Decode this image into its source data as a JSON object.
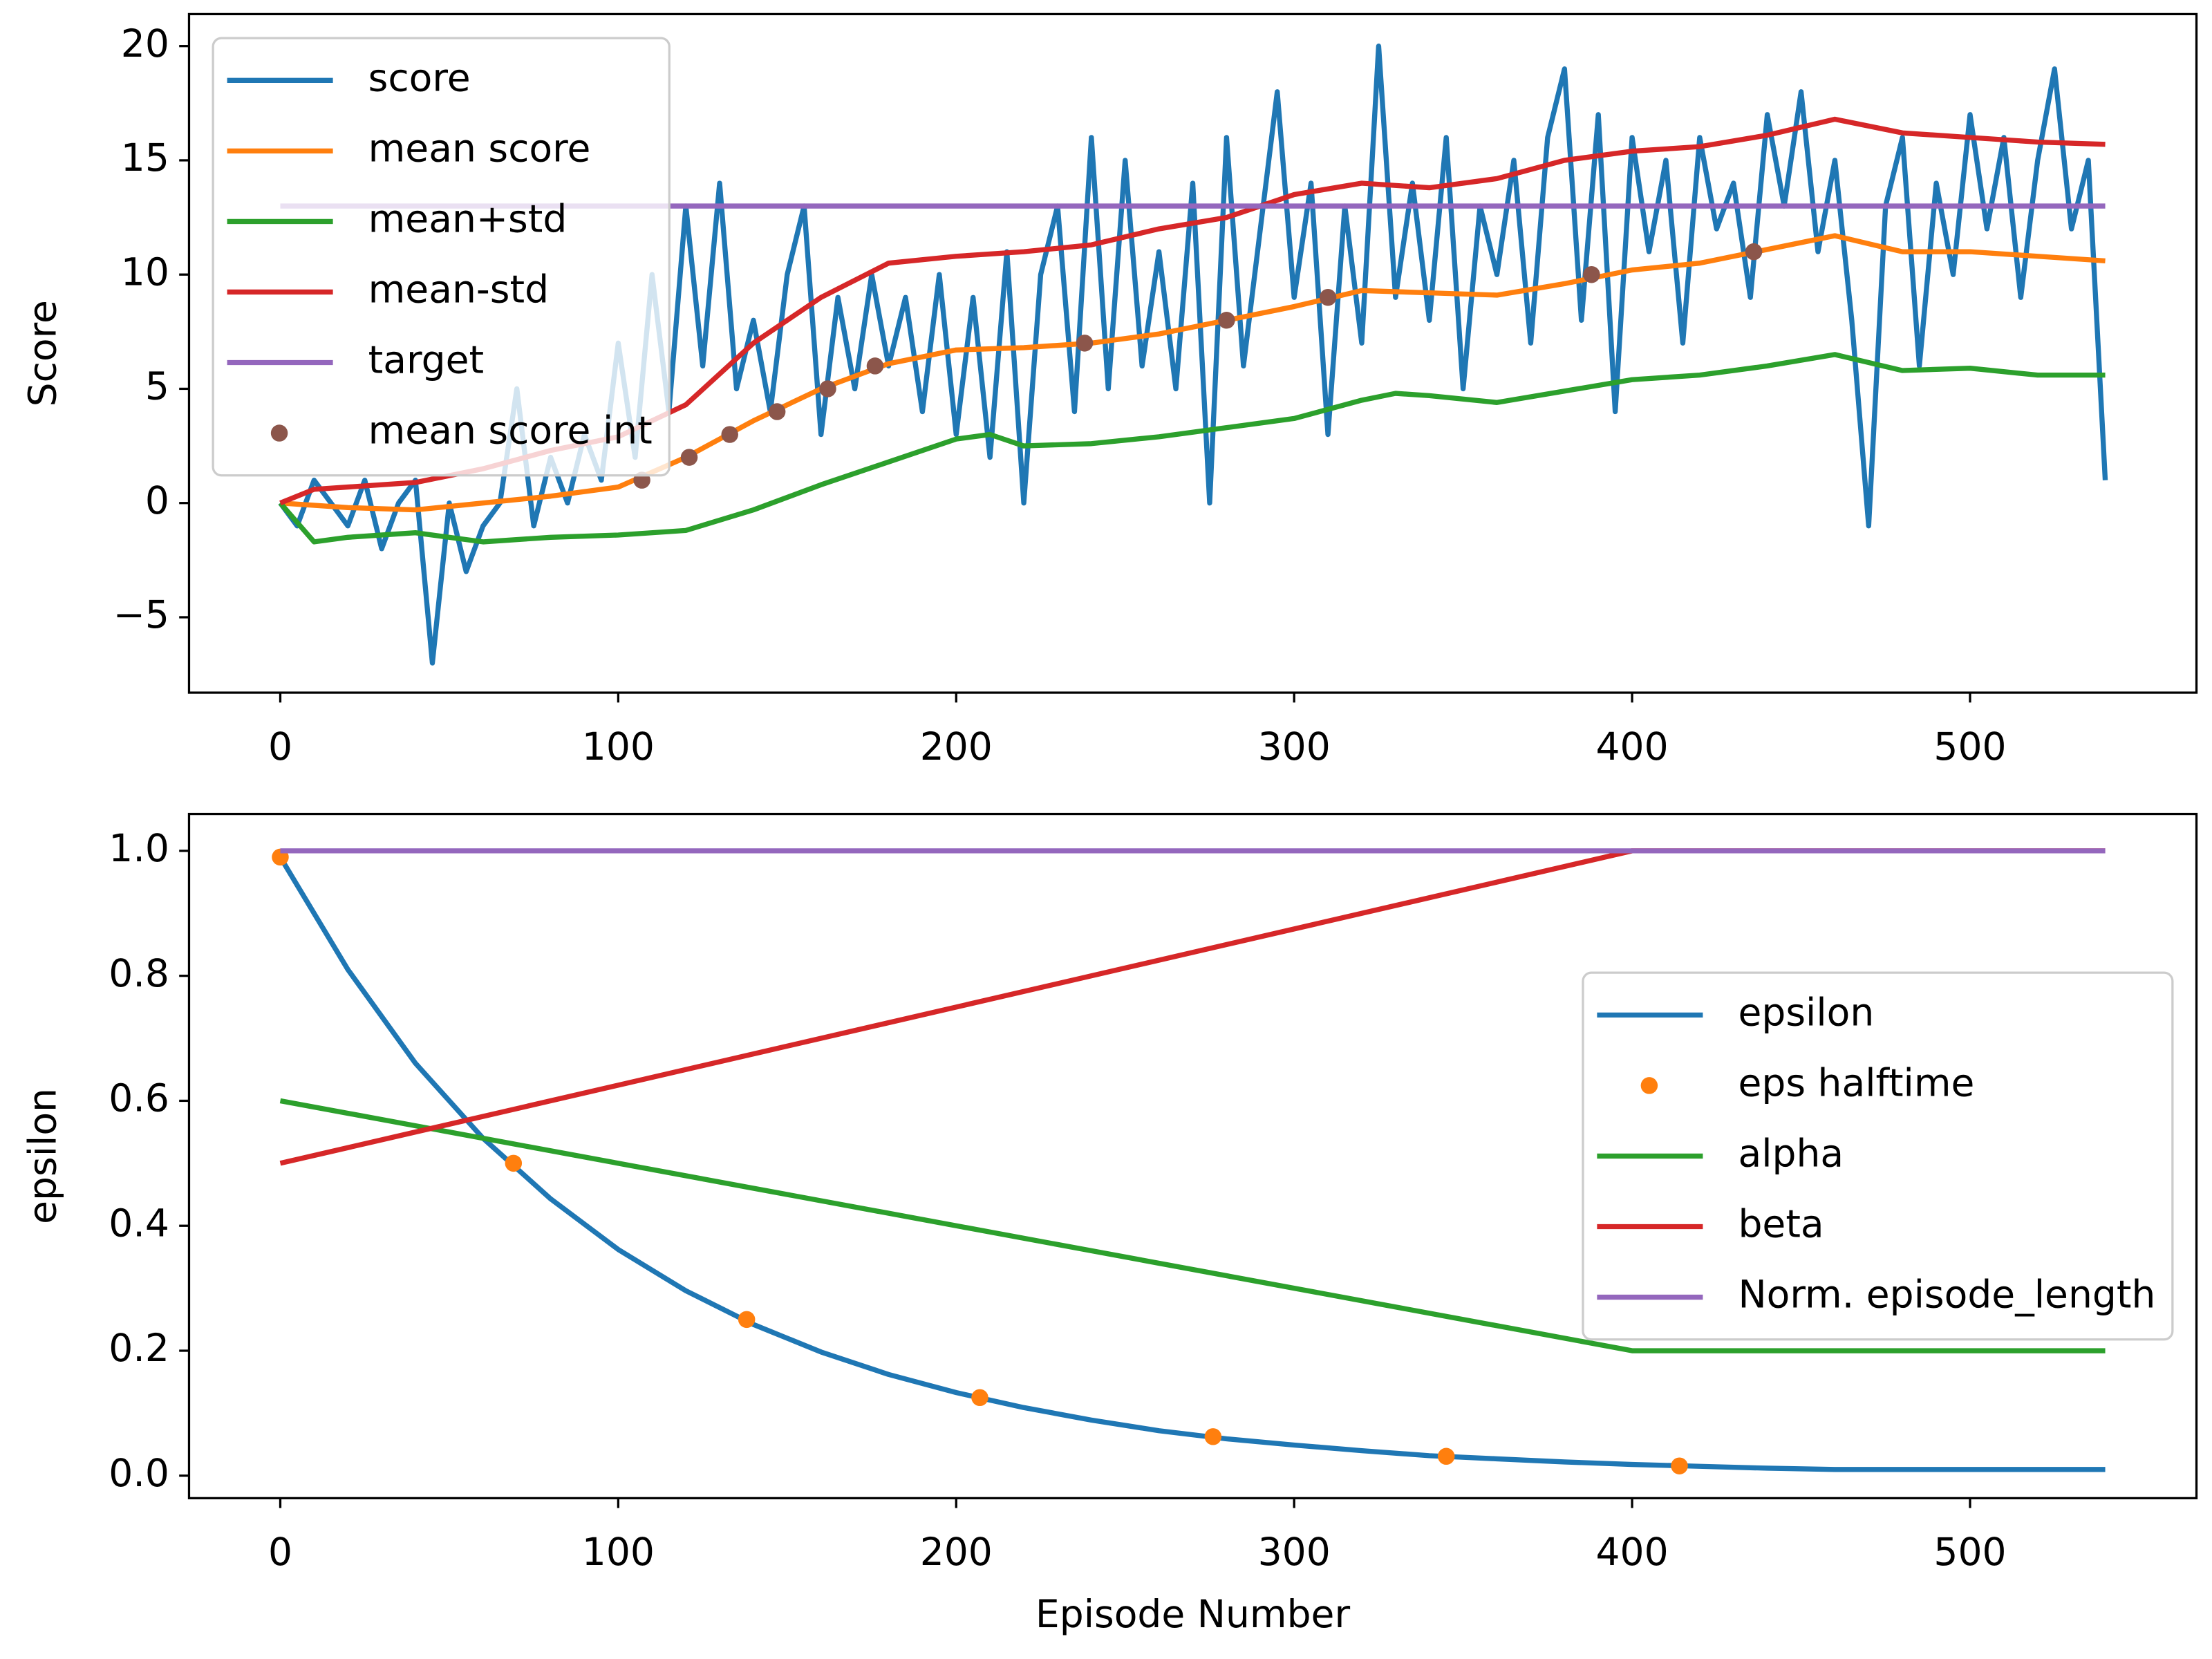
{
  "chart_data": [
    {
      "type": "line",
      "ylabel": "Score",
      "legend": "upper left",
      "xlim": [
        -27,
        567
      ],
      "ylim": [
        -8.3,
        21.4
      ],
      "xticks": [
        0,
        100,
        200,
        300,
        400,
        500
      ],
      "yticks": [
        {
          "value": -5,
          "label": "−5"
        },
        0,
        5,
        10,
        15,
        20
      ],
      "series": [
        {
          "name": "score",
          "color": "#1f77b4",
          "style": "line",
          "x": [
            0,
            5,
            10,
            15,
            20,
            25,
            30,
            35,
            40,
            45,
            50,
            55,
            60,
            65,
            70,
            75,
            80,
            85,
            90,
            95,
            100,
            105,
            110,
            115,
            120,
            125,
            130,
            135,
            140,
            145,
            150,
            155,
            160,
            165,
            170,
            175,
            180,
            185,
            190,
            195,
            200,
            205,
            210,
            215,
            220,
            225,
            230,
            235,
            240,
            245,
            250,
            255,
            260,
            265,
            270,
            275,
            280,
            285,
            290,
            295,
            300,
            305,
            310,
            315,
            320,
            325,
            330,
            335,
            340,
            345,
            350,
            355,
            360,
            365,
            370,
            375,
            380,
            385,
            390,
            395,
            400,
            405,
            410,
            415,
            420,
            425,
            430,
            435,
            440,
            445,
            450,
            455,
            460,
            465,
            470,
            475,
            480,
            485,
            490,
            495,
            500,
            505,
            510,
            515,
            520,
            525,
            530,
            535,
            540
          ],
          "values": [
            0,
            -1,
            1,
            0,
            -1,
            1,
            -2,
            0,
            1,
            -7,
            0,
            -3,
            -1,
            0,
            5,
            -1,
            2,
            0,
            3,
            1,
            7,
            2,
            10,
            4,
            13,
            6,
            14,
            5,
            8,
            4,
            10,
            13,
            3,
            9,
            5,
            10,
            6,
            9,
            4,
            10,
            3,
            9,
            2,
            11,
            0,
            10,
            13,
            4,
            16,
            5,
            15,
            6,
            11,
            5,
            14,
            0,
            16,
            6,
            12,
            18,
            9,
            14,
            3,
            13,
            7,
            20,
            9,
            14,
            8,
            16,
            5,
            13,
            10,
            15,
            7,
            16,
            19,
            8,
            17,
            4,
            16,
            11,
            15,
            7,
            16,
            12,
            14,
            9,
            17,
            13,
            18,
            11,
            15,
            8,
            -1,
            13,
            16,
            6,
            14,
            10,
            17,
            12,
            16,
            9,
            15,
            19,
            12,
            15,
            1
          ]
        },
        {
          "name": "mean score",
          "color": "#ff7f0e",
          "style": "line",
          "x": [
            0,
            20,
            40,
            60,
            80,
            100,
            120,
            140,
            160,
            180,
            200,
            220,
            240,
            260,
            280,
            300,
            320,
            340,
            360,
            380,
            400,
            420,
            440,
            460,
            480,
            500,
            520,
            540
          ],
          "values": [
            0,
            -0.2,
            -0.3,
            0,
            0.3,
            0.7,
            2,
            3.6,
            5,
            6.1,
            6.7,
            6.8,
            7,
            7.4,
            8,
            8.6,
            9.3,
            9.2,
            9.1,
            9.6,
            10.2,
            10.5,
            11.1,
            11.7,
            11,
            11,
            10.8,
            10.6
          ]
        },
        {
          "name": "mean+std",
          "color": "#2ca02c",
          "style": "line",
          "x": [
            0,
            10,
            20,
            40,
            60,
            80,
            100,
            120,
            140,
            160,
            180,
            200,
            210,
            220,
            240,
            260,
            280,
            300,
            320,
            330,
            340,
            360,
            380,
            400,
            420,
            440,
            460,
            480,
            500,
            520,
            540
          ],
          "values": [
            0,
            -1.7,
            -1.5,
            -1.3,
            -1.7,
            -1.5,
            -1.4,
            -1.2,
            -0.3,
            0.8,
            1.8,
            2.8,
            3,
            2.5,
            2.6,
            2.9,
            3.3,
            3.7,
            4.5,
            4.8,
            4.7,
            4.4,
            4.9,
            5.4,
            5.6,
            6,
            6.5,
            5.8,
            5.9,
            5.6,
            5.6
          ]
        },
        {
          "name": "mean-std",
          "color": "#d62728",
          "style": "line",
          "x": [
            0,
            10,
            20,
            40,
            60,
            80,
            100,
            120,
            140,
            160,
            180,
            200,
            220,
            240,
            260,
            280,
            300,
            320,
            340,
            360,
            380,
            400,
            420,
            440,
            460,
            480,
            500,
            520,
            540
          ],
          "values": [
            0,
            0.6,
            0.7,
            0.9,
            1.5,
            2.3,
            2.9,
            4.3,
            7,
            9,
            10.5,
            10.8,
            11,
            11.3,
            12,
            12.5,
            13.5,
            14,
            13.8,
            14.2,
            15,
            15.4,
            15.6,
            16.1,
            16.8,
            16.2,
            16,
            15.8,
            15.7
          ]
        },
        {
          "name": "target",
          "color": "#9467bd",
          "style": "line",
          "x": [
            0,
            540
          ],
          "values": [
            13,
            13
          ]
        },
        {
          "name": "mean score int",
          "color": "#8c564b",
          "style": "points",
          "x": [
            107,
            121,
            133,
            147,
            162,
            176,
            238,
            280,
            310,
            388,
            436
          ],
          "values": [
            1,
            2,
            3,
            4,
            5,
            6,
            7,
            8,
            9,
            10,
            11
          ]
        }
      ]
    },
    {
      "type": "line",
      "ylabel": "epsilon",
      "xlabel": "Episode Number",
      "legend": "center right",
      "xlim": [
        -27,
        567
      ],
      "ylim": [
        -0.036,
        1.059
      ],
      "xticks": [
        0,
        100,
        200,
        300,
        400,
        500
      ],
      "yticks": [
        {
          "value": 0,
          "label": "0.0"
        },
        {
          "value": 0.2,
          "label": "0.2"
        },
        {
          "value": 0.4,
          "label": "0.4"
        },
        {
          "value": 0.6,
          "label": "0.6"
        },
        {
          "value": 0.8,
          "label": "0.8"
        },
        {
          "value": 1,
          "label": "1.0"
        }
      ],
      "series": [
        {
          "name": "epsilon",
          "color": "#1f77b4",
          "style": "line",
          "x": [
            0,
            20,
            40,
            60,
            80,
            100,
            120,
            140,
            160,
            180,
            200,
            220,
            240,
            260,
            280,
            300,
            320,
            340,
            360,
            380,
            400,
            420,
            440,
            460,
            480,
            500,
            520,
            540
          ],
          "values": [
            0.99,
            0.81,
            0.66,
            0.54,
            0.443,
            0.362,
            0.296,
            0.242,
            0.198,
            0.162,
            0.133,
            0.109,
            0.089,
            0.072,
            0.059,
            0.049,
            0.04,
            0.032,
            0.027,
            0.022,
            0.018,
            0.015,
            0.012,
            0.01,
            0.01,
            0.01,
            0.01,
            0.01
          ]
        },
        {
          "name": "eps halftime",
          "color": "#ff7f0e",
          "style": "points",
          "x": [
            0,
            69,
            138,
            207,
            276,
            345,
            414
          ],
          "values": [
            0.99,
            0.5,
            0.25,
            0.125,
            0.0625,
            0.031,
            0.0156
          ]
        },
        {
          "name": "alpha",
          "color": "#2ca02c",
          "style": "line",
          "x": [
            0,
            400,
            540
          ],
          "values": [
            0.6,
            0.2,
            0.2
          ]
        },
        {
          "name": "beta",
          "color": "#d62728",
          "style": "line",
          "x": [
            0,
            400,
            540
          ],
          "values": [
            0.5,
            1,
            1
          ]
        },
        {
          "name": "Norm. episode_length",
          "color": "#9467bd",
          "style": "line",
          "x": [
            0,
            540
          ],
          "values": [
            1,
            1
          ]
        }
      ]
    }
  ]
}
